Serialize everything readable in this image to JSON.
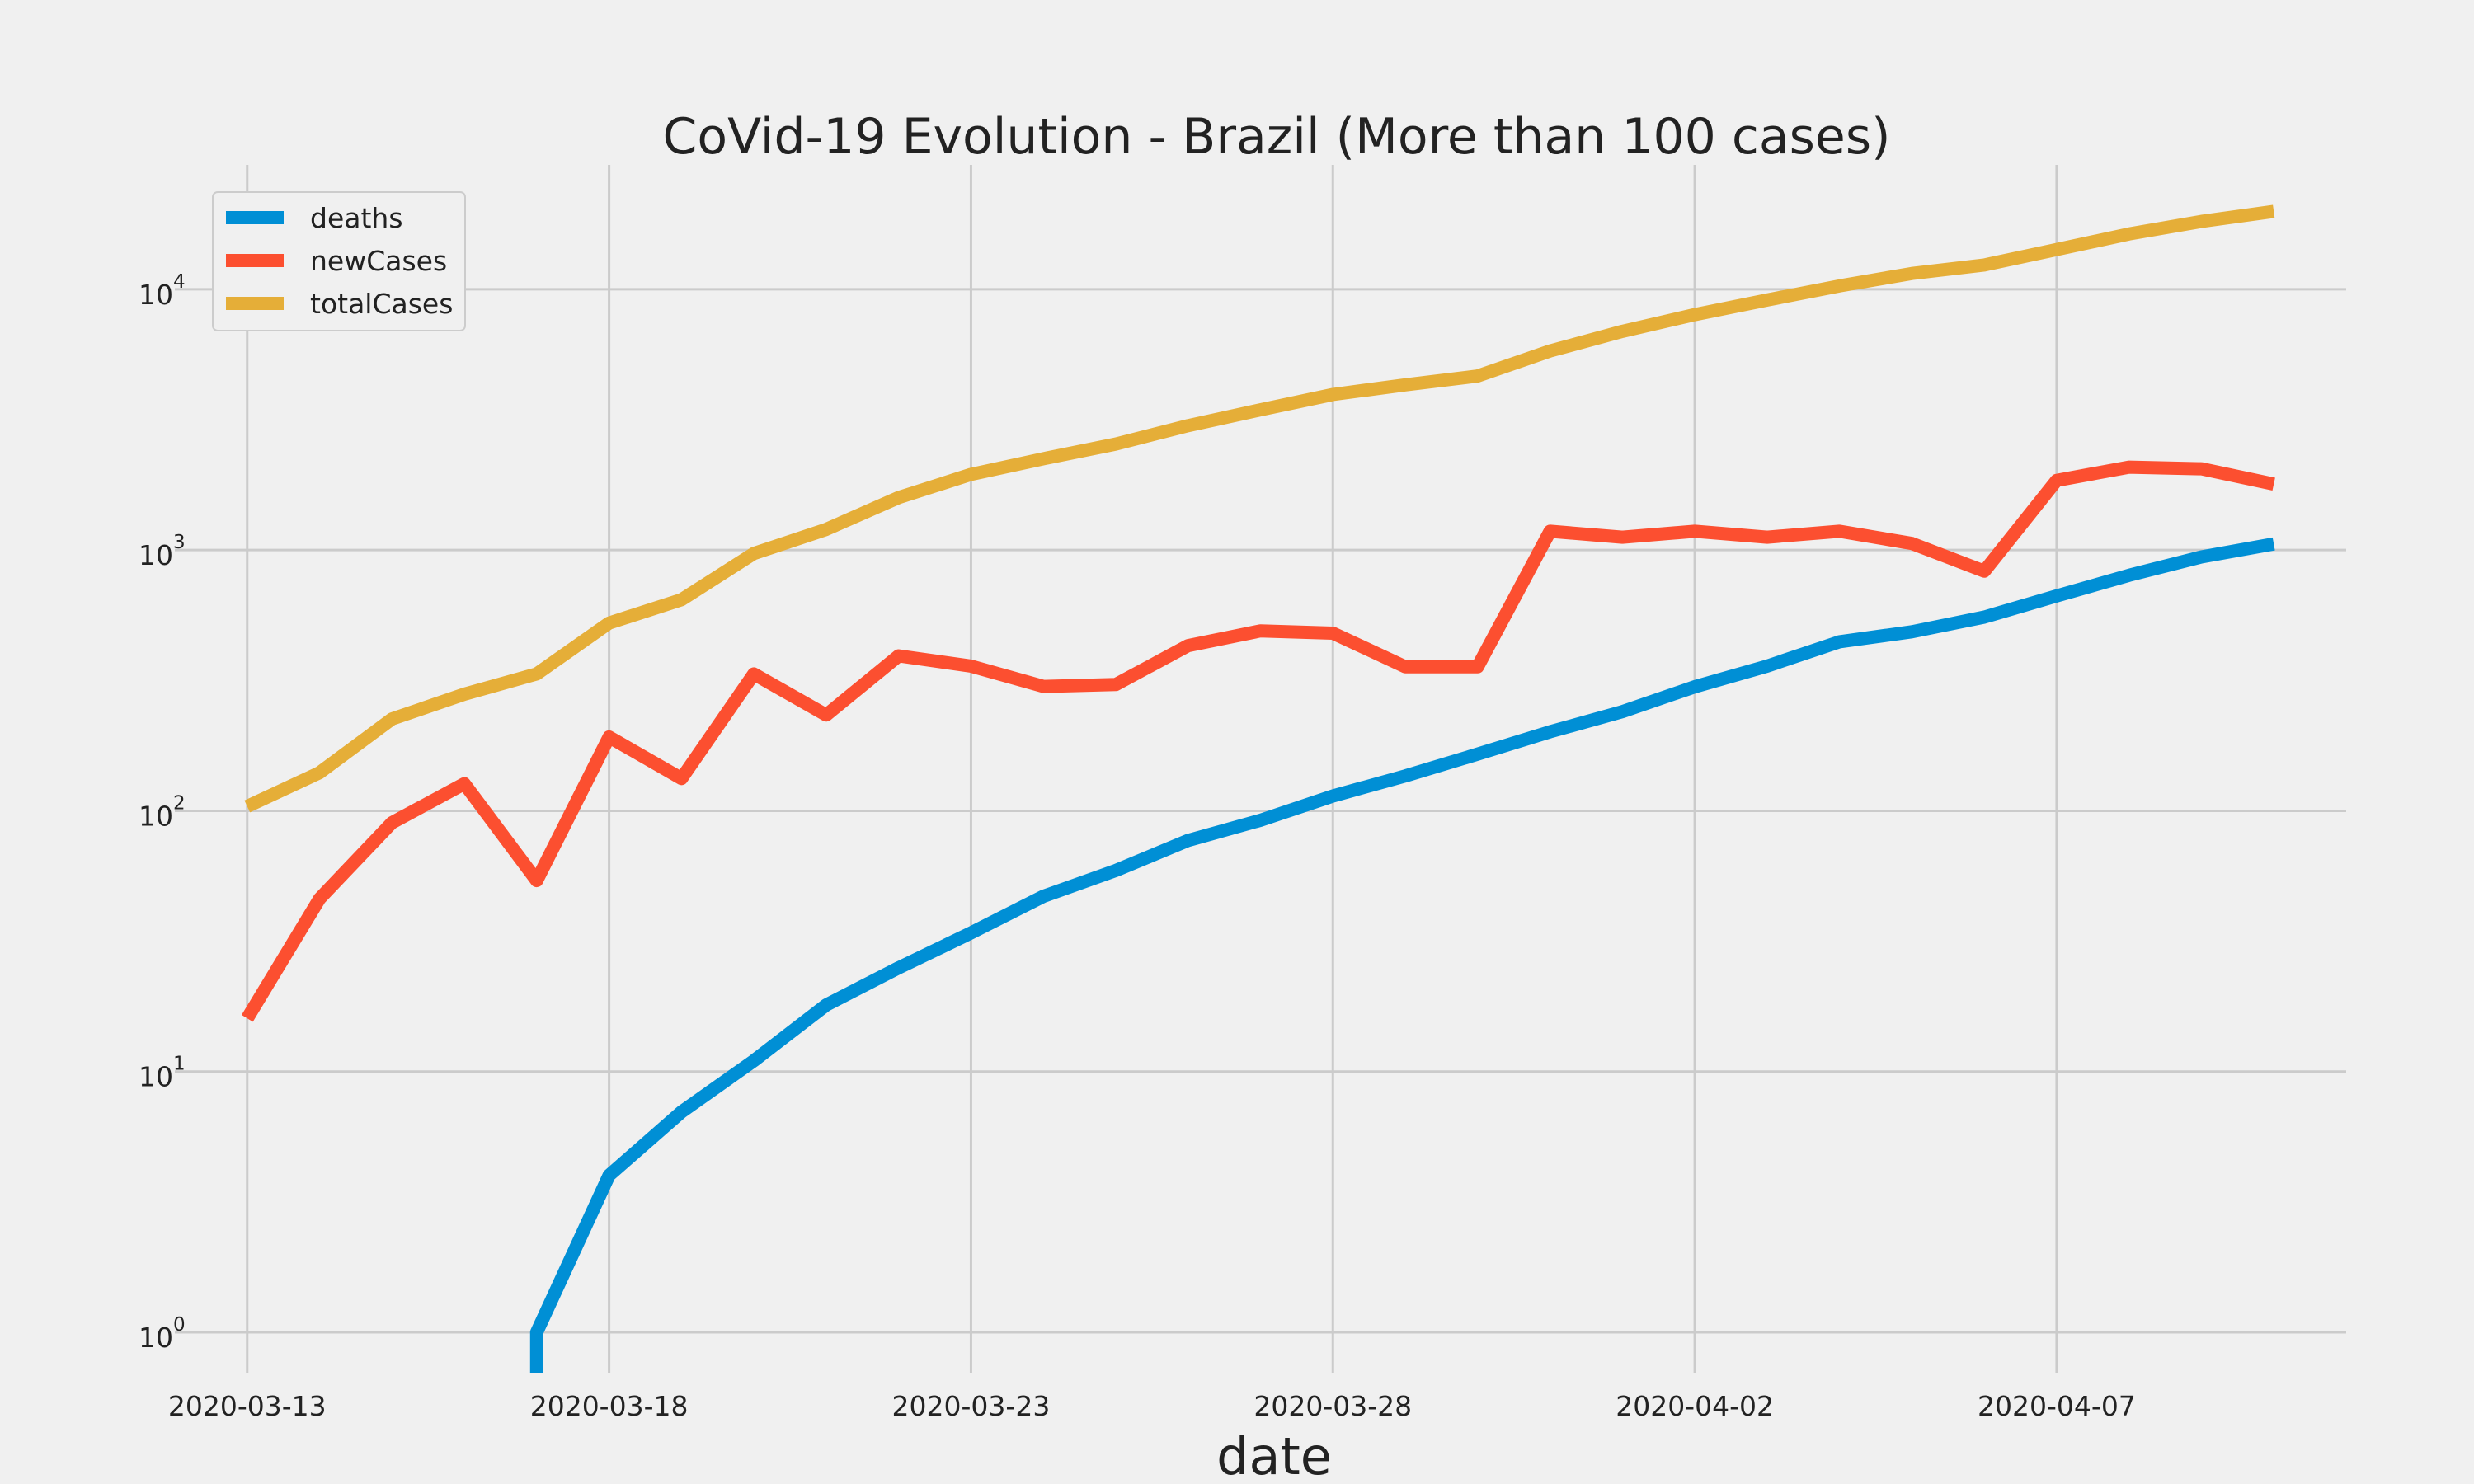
{
  "chart_data": {
    "type": "line",
    "title": "CoVid-19 Evolution - Brazil (More than 100 cases)",
    "xlabel": "date",
    "ylabel": "",
    "y_scale": "log",
    "ylim": [
      0.7,
      30000
    ],
    "xlim": [
      "2020-03-12",
      "2020-04-11"
    ],
    "grid": true,
    "legend_position": "top-left",
    "x_ticks": [
      "2020-03-13",
      "2020-03-18",
      "2020-03-23",
      "2020-03-28",
      "2020-04-02",
      "2020-04-07"
    ],
    "y_ticks": [
      {
        "value": 1,
        "base": "10",
        "exp": "0"
      },
      {
        "value": 10,
        "base": "10",
        "exp": "1"
      },
      {
        "value": 100,
        "base": "10",
        "exp": "2"
      },
      {
        "value": 1000,
        "base": "10",
        "exp": "3"
      },
      {
        "value": 10000,
        "base": "10",
        "exp": "4"
      }
    ],
    "x": [
      "2020-03-13",
      "2020-03-14",
      "2020-03-15",
      "2020-03-16",
      "2020-03-17",
      "2020-03-18",
      "2020-03-19",
      "2020-03-20",
      "2020-03-21",
      "2020-03-22",
      "2020-03-23",
      "2020-03-24",
      "2020-03-25",
      "2020-03-26",
      "2020-03-27",
      "2020-03-28",
      "2020-03-29",
      "2020-03-30",
      "2020-03-31",
      "2020-04-01",
      "2020-04-02",
      "2020-04-03",
      "2020-04-04",
      "2020-04-05",
      "2020-04-06",
      "2020-04-07",
      "2020-04-08",
      "2020-04-09",
      "2020-04-10"
    ],
    "series": [
      {
        "name": "deaths",
        "color": "#008fd5",
        "values": [
          0,
          0,
          0,
          0,
          1,
          4,
          7,
          11,
          18,
          25,
          34,
          47,
          59,
          77,
          92,
          114,
          136,
          165,
          201,
          240,
          299,
          359,
          445,
          486,
          553,
          667,
          800,
          941,
          1056
        ]
      },
      {
        "name": "newCases",
        "color": "#fc4f30",
        "values": [
          16,
          46,
          90,
          127,
          54,
          192,
          133,
          335,
          233,
          393,
          359,
          300,
          305,
          430,
          490,
          480,
          357,
          357,
          1180,
          1120,
          1180,
          1120,
          1180,
          1060,
          830,
          1850,
          2080,
          2050,
          1790
        ]
      },
      {
        "name": "totalCases",
        "color": "#e5ae38",
        "values": [
          104,
          140,
          225,
          280,
          335,
          525,
          645,
          970,
          1200,
          1590,
          1950,
          2240,
          2550,
          3000,
          3450,
          3950,
          4300,
          4650,
          5800,
          6900,
          8000,
          9100,
          10300,
          11500,
          12400,
          14200,
          16300,
          18200,
          19900
        ]
      }
    ]
  }
}
